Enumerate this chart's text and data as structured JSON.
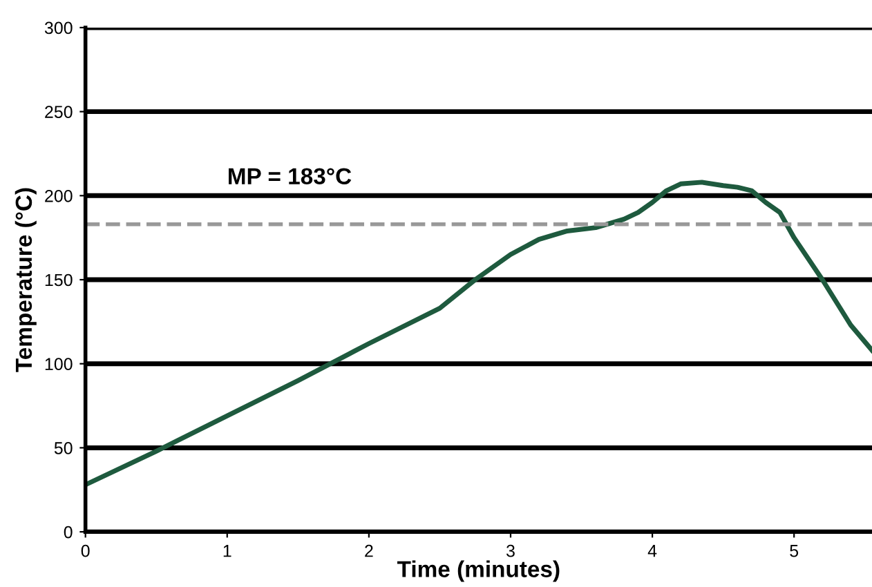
{
  "chart_data": {
    "type": "line",
    "xlabel": "Time (minutes)",
    "ylabel": "Temperature (°C)",
    "x": [
      0,
      0.5,
      1,
      1.5,
      2,
      2.5,
      2.75,
      3,
      3.2,
      3.4,
      3.6,
      3.8,
      3.9,
      4.0,
      4.1,
      4.2,
      4.35,
      4.5,
      4.6,
      4.7,
      4.8,
      4.9,
      5.0,
      5.2,
      5.4,
      5.55
    ],
    "series": [
      {
        "color": "#1e5a3e",
        "values": [
          28,
          48,
          69,
          90,
          112,
          133,
          150,
          165,
          174,
          179,
          181,
          186,
          190,
          196,
          203,
          207,
          208,
          206,
          205,
          203,
          196,
          190,
          175,
          150,
          123,
          108
        ]
      }
    ],
    "xlim": [
      0,
      5.55
    ],
    "ylim": [
      0,
      300
    ],
    "xticks": [
      0,
      1,
      2,
      3,
      4,
      5
    ],
    "yticks": [
      0,
      50,
      100,
      150,
      200,
      250,
      300
    ],
    "grid": "y",
    "line_style": "solid",
    "ref_lines": [
      {
        "axis": "y",
        "value": 183,
        "label": "MP = 183°C",
        "color": "#999999",
        "line_style": "dashed"
      }
    ]
  }
}
